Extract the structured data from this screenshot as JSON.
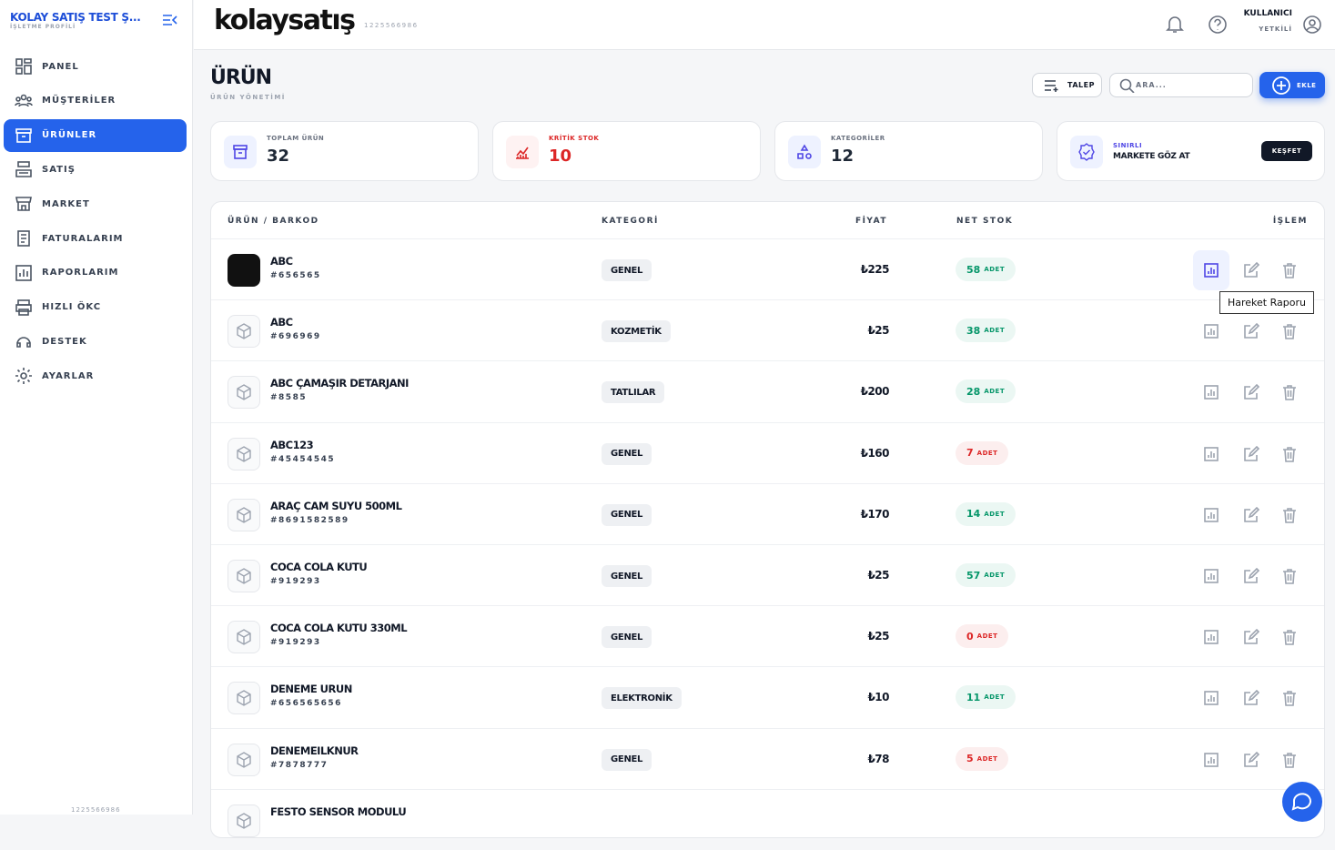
{
  "sidebar": {
    "brand": "KOLAY SATIŞ TEST Ş...",
    "subtitle": "İŞLETME PROFİLİ",
    "menu": [
      "PANEL",
      "MÜŞTERİLER",
      "ÜRÜNLER",
      "SATIŞ",
      "MARKET",
      "FATURALARIM",
      "RAPORLARIM",
      "HIZLI ÖKC",
      "DESTEK",
      "AYARLAR"
    ],
    "active": 2,
    "footer": "1225566986"
  },
  "header": {
    "logo": "kolaysatış",
    "code": "1225566986",
    "user": "KULLANICI",
    "role": "YETKİLİ"
  },
  "page": {
    "title": "ÜRÜN",
    "subtitle": "ÜRÜN YÖNETİMİ",
    "request_button": "TALEP",
    "search_placeholder": "ARA...",
    "add_button": "EKLE"
  },
  "stats": [
    {
      "label": "TOPLAM ÜRÜN",
      "value": 32,
      "color": "#1f2937"
    },
    {
      "label": "KRİTİK STOK",
      "value": 10,
      "color": "#dc2626"
    },
    {
      "label": "KATEGORİLER",
      "value": 12,
      "color": "#1f2937"
    }
  ],
  "promo": {
    "tag": "SINIRLI",
    "text": "MARKETE GÖZ AT",
    "button": "KEŞFET"
  },
  "table": {
    "headers": [
      "ÜRÜN / BARKOD",
      "KATEGORİ",
      "FİYAT",
      "NET STOK",
      "İŞLEM"
    ],
    "unit": "ADET",
    "tooltip": "Hareket Raporu",
    "rows": [
      {
        "name": "ABC",
        "barcode": "#656565",
        "category": "GENEL",
        "price": "₺225",
        "stock": 58,
        "color": "#059669"
      },
      {
        "name": "ABC",
        "barcode": "#696969",
        "category": "KOZMETİK",
        "price": "₺25",
        "stock": 38,
        "color": "#059669"
      },
      {
        "name": "ABC ÇAMAŞIR DETARJANI",
        "barcode": "#8585",
        "category": "TATLILAR",
        "price": "₺200",
        "stock": 28,
        "color": "#059669"
      },
      {
        "name": "ABC123",
        "barcode": "#45454545",
        "category": "GENEL",
        "price": "₺160",
        "stock": 7,
        "color": "#dc2626"
      },
      {
        "name": "ARAÇ CAM SUYU 500ML",
        "barcode": "#8691582589",
        "category": "GENEL",
        "price": "₺170",
        "stock": 14,
        "color": "#059669"
      },
      {
        "name": "COCA COLA KUTU",
        "barcode": "#919293",
        "category": "GENEL",
        "price": "₺25",
        "stock": 57,
        "color": "#059669"
      },
      {
        "name": "COCA COLA KUTU 330ML",
        "barcode": "#919293",
        "category": "GENEL",
        "price": "₺25",
        "stock": 0,
        "color": "#dc2626"
      },
      {
        "name": "DENEME URUN",
        "barcode": "#656565656",
        "category": "ELEKTRONİK",
        "price": "₺10",
        "stock": 11,
        "color": "#059669"
      },
      {
        "name": "DENEMEILKNUR",
        "barcode": "#7878777",
        "category": "GENEL",
        "price": "₺78",
        "stock": 5,
        "color": "#dc2626"
      },
      {
        "name": "FESTO SENSOR MODULU"
      }
    ]
  }
}
